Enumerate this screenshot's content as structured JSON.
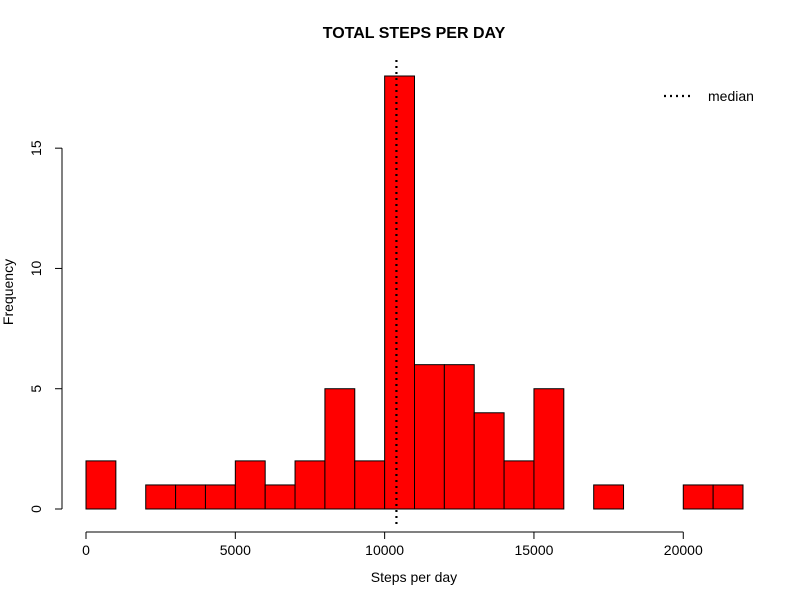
{
  "chart_data": {
    "type": "bar",
    "title": "TOTAL STEPS PER DAY",
    "xlabel": "Steps per day",
    "ylabel": "Frequency",
    "bin_width": 1000,
    "bin_starts": [
      0,
      1000,
      2000,
      3000,
      4000,
      5000,
      6000,
      7000,
      8000,
      9000,
      10000,
      11000,
      12000,
      13000,
      14000,
      15000,
      16000,
      17000,
      18000,
      19000,
      20000,
      21000
    ],
    "values": [
      2,
      0,
      1,
      1,
      1,
      2,
      1,
      2,
      5,
      2,
      18,
      6,
      6,
      4,
      2,
      5,
      0,
      1,
      0,
      0,
      1,
      1
    ],
    "xlim": [
      0,
      22000
    ],
    "ylim": [
      0,
      18
    ],
    "x_ticks": [
      "0",
      "5000",
      "10000",
      "15000",
      "20000"
    ],
    "x_tick_values": [
      0,
      5000,
      10000,
      15000,
      20000
    ],
    "y_ticks": [
      "0",
      "5",
      "10",
      "15"
    ],
    "y_tick_values": [
      0,
      5,
      10,
      15
    ],
    "median": 10395,
    "legend": {
      "position": "top-right",
      "entries": [
        "median"
      ]
    },
    "grid": false,
    "bar_color": "#ff0000",
    "bar_border_color": "#000000",
    "median_line_color": "#000000"
  }
}
